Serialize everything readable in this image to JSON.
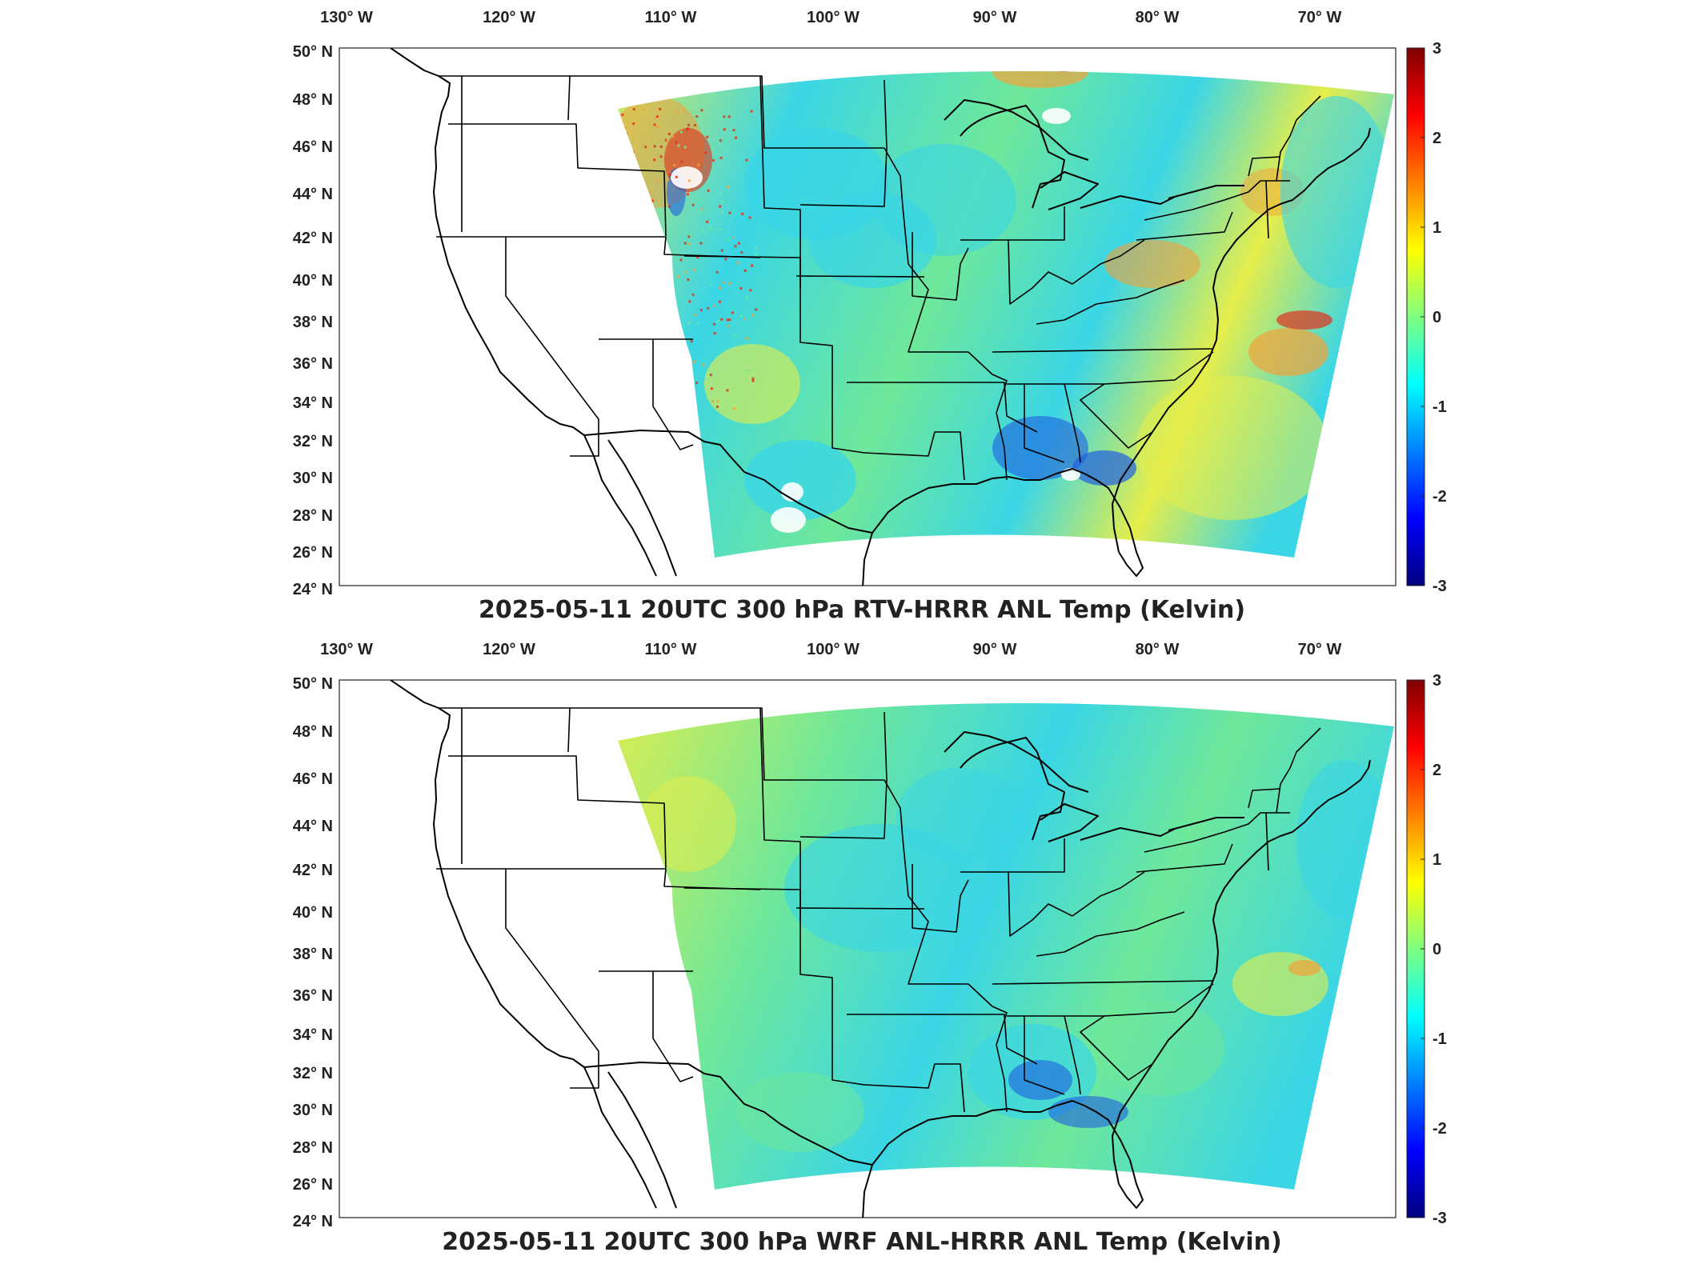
{
  "panels": [
    {
      "id": "top",
      "title": "2025-05-11 20UTC 300 hPa RTV-HRRR ANL Temp (Kelvin)",
      "variant": "rtv"
    },
    {
      "id": "bottom",
      "title": "2025-05-11 20UTC 300 hPa WRF ANL-HRRR ANL Temp (Kelvin)",
      "variant": "wrf"
    }
  ],
  "axes": {
    "lon_labels": [
      "130° W",
      "120° W",
      "110° W",
      "100° W",
      "90° W",
      "80° W",
      "70° W"
    ],
    "lat_labels": [
      "50° N",
      "48° N",
      "46° N",
      "44° N",
      "42° N",
      "40° N",
      "38° N",
      "36° N",
      "34° N",
      "32° N",
      "30° N",
      "28° N",
      "26° N",
      "24° N"
    ]
  },
  "colorbar": {
    "ticks": [
      "3",
      "2",
      "1",
      "0",
      "-1",
      "-2",
      "-3"
    ],
    "range": [
      -3,
      3
    ],
    "colormap": "jet",
    "stops": [
      "#00007f",
      "#0000ff",
      "#007fff",
      "#00ffff",
      "#7fff7f",
      "#ffff00",
      "#ff7f00",
      "#ff0000",
      "#7f0000"
    ]
  },
  "colors": {
    "field_base": "#6fe89a",
    "cyan": "#3ad6e6",
    "yellow": "#e6ee4a",
    "orange": "#f2a23a",
    "red": "#e0321e",
    "blue": "#1f5fe0",
    "border": "#000000"
  }
}
